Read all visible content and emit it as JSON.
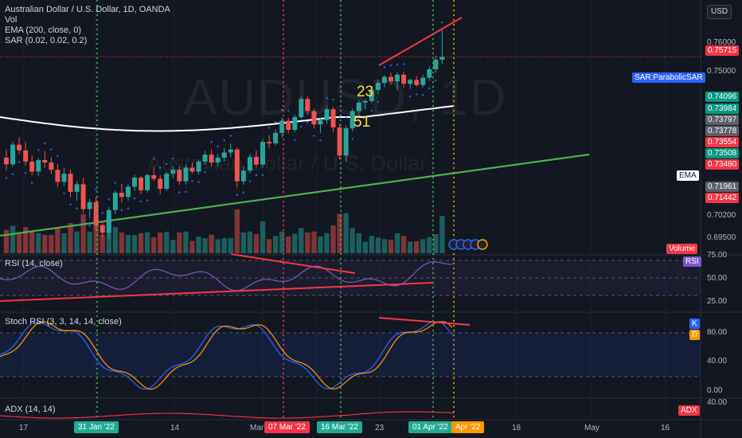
{
  "header": {
    "symbol_line": "Australian Dollar / U.S. Dollar, 1D, OANDA",
    "vol": "Vol",
    "ema": "EMA (200, close, 0)",
    "sar": "SAR (0.02, 0.02, 0.2)",
    "currency": "USD"
  },
  "watermark": {
    "main": "AUDUSD, 1D",
    "sub": "Australian Dollar / U.S. Dollar"
  },
  "annotations": {
    "n1": "23",
    "n2": "51"
  },
  "price_scale": {
    "ticks": [
      "0.76000",
      "0.75000",
      "0.70200",
      "0.69500"
    ],
    "tags": [
      {
        "text": "0.75715",
        "bg": "#f23645",
        "fg": "#ffffff"
      },
      {
        "text": "SAR:ParabolicSAR",
        "bg": "#2962ff",
        "fg": "#ffffff"
      },
      {
        "text": "0.74096",
        "bg": "#089981",
        "fg": "#ffffff"
      },
      {
        "text": "0.73984",
        "bg": "#089981",
        "fg": "#ffffff"
      },
      {
        "text": "0.73797",
        "bg": "#5d606b",
        "fg": "#ffffff"
      },
      {
        "text": "0.73778",
        "bg": "#5d606b",
        "fg": "#ffffff"
      },
      {
        "text": "0.73554",
        "bg": "#f23645",
        "fg": "#ffffff"
      },
      {
        "text": "0.73508",
        "bg": "#089981",
        "fg": "#ffffff"
      },
      {
        "text": "0.73480",
        "bg": "#f23645",
        "fg": "#ffffff"
      },
      {
        "text": "EMA",
        "bg": "#ffffff",
        "fg": "#131722"
      },
      {
        "text": "0.71961",
        "bg": "#5d606b",
        "fg": "#ffffff"
      },
      {
        "text": "0.71442",
        "bg": "#f23645",
        "fg": "#ffffff"
      },
      {
        "text": "Volume",
        "bg": "#f23645",
        "fg": "#ffffff"
      }
    ]
  },
  "rsi_pane": {
    "title": "RSI (14, close)",
    "tag": "RSI",
    "ticks": [
      "75.00",
      "50.00",
      "25.00"
    ]
  },
  "stoch_pane": {
    "title": "Stoch RSI (3, 3, 14, 14, close)",
    "tag_k": "K",
    "tag_d": "D",
    "ticks": [
      "80.00",
      "40.00",
      "0.00"
    ]
  },
  "adx_pane": {
    "title": "ADX (14, 14)",
    "tag": "ADX",
    "ticks": [
      "40.00"
    ]
  },
  "time_axis": {
    "labels": [
      "17",
      "14",
      "Mar",
      "23",
      "18",
      "May",
      "16"
    ],
    "markers": [
      {
        "text": "31 Jan '22",
        "color": "#22ab94"
      },
      {
        "text": "07 Mar '22",
        "color": "#f23645"
      },
      {
        "text": "16 Mar '22",
        "color": "#22ab94"
      },
      {
        "text": "01 Apr '22",
        "color": "#22ab94"
      },
      {
        "text": "Apr '22",
        "color": "#ff9800"
      }
    ]
  },
  "colors": {
    "background": "#131722",
    "up": "#26a69a",
    "down": "#ef5350",
    "ema": "#ffffff",
    "sar": "#2962ff",
    "trendline_up": "#4caf50",
    "trendline_red": "#f23645",
    "rsi": "#7e57c2",
    "stoch_k": "#2962ff",
    "stoch_d": "#ff9800",
    "adx": "#f23645"
  },
  "chart_data": {
    "type": "candlestick",
    "symbol": "AUDUSD",
    "interval": "1D",
    "ylim": [
      0.693,
      0.768
    ],
    "candles": [
      [
        0.7238,
        0.7265,
        0.7195,
        0.7216
      ],
      [
        0.7216,
        0.729,
        0.7208,
        0.7281
      ],
      [
        0.7281,
        0.7305,
        0.7248,
        0.7262
      ],
      [
        0.7262,
        0.729,
        0.7212,
        0.7225
      ],
      [
        0.7225,
        0.7245,
        0.718,
        0.7192
      ],
      [
        0.7192,
        0.7238,
        0.7178,
        0.723
      ],
      [
        0.723,
        0.726,
        0.7205,
        0.7222
      ],
      [
        0.7222,
        0.724,
        0.7185,
        0.7198
      ],
      [
        0.7198,
        0.7218,
        0.7142,
        0.7158
      ],
      [
        0.7158,
        0.7205,
        0.7145,
        0.7185
      ],
      [
        0.7185,
        0.7198,
        0.7108,
        0.7125
      ],
      [
        0.7125,
        0.716,
        0.7095,
        0.715
      ],
      [
        0.715,
        0.7172,
        0.7055,
        0.7068
      ],
      [
        0.7068,
        0.7102,
        0.7038,
        0.7091
      ],
      [
        0.7091,
        0.7108,
        0.7,
        0.7015
      ],
      [
        0.7015,
        0.703,
        0.6975,
        0.699
      ],
      [
        0.699,
        0.7075,
        0.6968,
        0.7065
      ],
      [
        0.7065,
        0.713,
        0.7052,
        0.7122
      ],
      [
        0.7122,
        0.7152,
        0.709,
        0.7108
      ],
      [
        0.7108,
        0.715,
        0.7095,
        0.7142
      ],
      [
        0.7142,
        0.7182,
        0.7128,
        0.7172
      ],
      [
        0.7172,
        0.7178,
        0.7118,
        0.713
      ],
      [
        0.713,
        0.7185,
        0.7122,
        0.718
      ],
      [
        0.718,
        0.7208,
        0.716,
        0.7168
      ],
      [
        0.7168,
        0.718,
        0.7118,
        0.7135
      ],
      [
        0.7135,
        0.7192,
        0.7128,
        0.7185
      ],
      [
        0.7185,
        0.721,
        0.717,
        0.7198
      ],
      [
        0.7198,
        0.721,
        0.7148,
        0.716
      ],
      [
        0.716,
        0.7215,
        0.715,
        0.7205
      ],
      [
        0.7205,
        0.7222,
        0.7185,
        0.7192
      ],
      [
        0.7192,
        0.7232,
        0.7182,
        0.7225
      ],
      [
        0.7225,
        0.726,
        0.7215,
        0.7248
      ],
      [
        0.7248,
        0.7265,
        0.721,
        0.7222
      ],
      [
        0.7222,
        0.725,
        0.7208,
        0.7238
      ],
      [
        0.7238,
        0.727,
        0.7225,
        0.7255
      ],
      [
        0.7255,
        0.7285,
        0.724,
        0.7265
      ],
      [
        0.7265,
        0.7272,
        0.714,
        0.716
      ],
      [
        0.716,
        0.721,
        0.7148,
        0.7195
      ],
      [
        0.7195,
        0.725,
        0.7185,
        0.724
      ],
      [
        0.724,
        0.7262,
        0.7205,
        0.7215
      ],
      [
        0.7215,
        0.73,
        0.7205,
        0.729
      ],
      [
        0.729,
        0.7312,
        0.727,
        0.7285
      ],
      [
        0.7285,
        0.733,
        0.7278,
        0.732
      ],
      [
        0.732,
        0.737,
        0.7305,
        0.736
      ],
      [
        0.736,
        0.7368,
        0.7318,
        0.733
      ],
      [
        0.733,
        0.738,
        0.7322,
        0.7372
      ],
      [
        0.7372,
        0.744,
        0.7365,
        0.7432
      ],
      [
        0.7432,
        0.7442,
        0.738,
        0.7392
      ],
      [
        0.7392,
        0.74,
        0.7335,
        0.7348
      ],
      [
        0.7348,
        0.737,
        0.732,
        0.7362
      ],
      [
        0.7362,
        0.741,
        0.735,
        0.7398
      ],
      [
        0.7398,
        0.7405,
        0.7322,
        0.7338
      ],
      [
        0.7338,
        0.735,
        0.7232,
        0.7245
      ],
      [
        0.7245,
        0.7345,
        0.7225,
        0.7335
      ],
      [
        0.7335,
        0.74,
        0.7325,
        0.7392
      ],
      [
        0.7392,
        0.7428,
        0.7368,
        0.742
      ],
      [
        0.742,
        0.7432,
        0.7398,
        0.7425
      ],
      [
        0.7425,
        0.747,
        0.7418,
        0.7462
      ],
      [
        0.7462,
        0.7495,
        0.7448,
        0.7485
      ],
      [
        0.7485,
        0.7512,
        0.747,
        0.7505
      ],
      [
        0.7505,
        0.7518,
        0.7478,
        0.749
      ],
      [
        0.749,
        0.752,
        0.746,
        0.7512
      ],
      [
        0.7512,
        0.7522,
        0.747,
        0.7482
      ],
      [
        0.7482,
        0.75,
        0.7465,
        0.7495
      ],
      [
        0.7495,
        0.7508,
        0.7472,
        0.7478
      ],
      [
        0.7478,
        0.7512,
        0.747,
        0.7502
      ],
      [
        0.7502,
        0.754,
        0.7492,
        0.753
      ],
      [
        0.753,
        0.7575,
        0.7518,
        0.7562
      ],
      [
        0.7562,
        0.766,
        0.7548,
        0.7571
      ]
    ]
  }
}
